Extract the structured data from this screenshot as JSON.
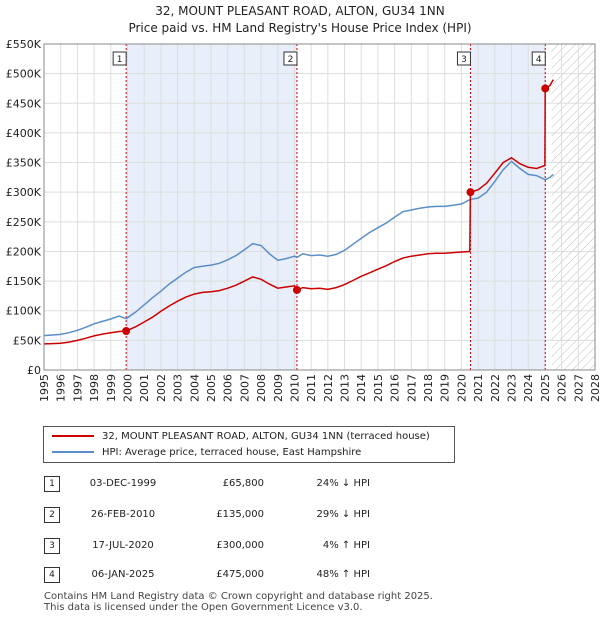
{
  "title": {
    "line1": "32, MOUNT PLEASANT ROAD, ALTON, GU34 1NN",
    "line2": "Price paid vs. HM Land Registry's House Price Index (HPI)"
  },
  "colors": {
    "property": "#cc0000",
    "hpi": "#5b8ec8",
    "band": "#e8eefa",
    "marker_line": "#cc0000"
  },
  "legend": {
    "property_label": "32, MOUNT PLEASANT ROAD, ALTON, GU34 1NN (terraced house)",
    "hpi_label": "HPI: Average price, terraced house, East Hampshire"
  },
  "transactions": [
    {
      "num": "1",
      "date": "03-DEC-1999",
      "price": "£65,800",
      "hpi": "24% ↓ HPI"
    },
    {
      "num": "2",
      "date": "26-FEB-2010",
      "price": "£135,000",
      "hpi": "29% ↓ HPI"
    },
    {
      "num": "3",
      "date": "17-JUL-2020",
      "price": "£300,000",
      "hpi": "4% ↑ HPI"
    },
    {
      "num": "4",
      "date": "06-JAN-2025",
      "price": "£475,000",
      "hpi": "48% ↑ HPI"
    }
  ],
  "footer": {
    "line1": "Contains HM Land Registry data © Crown copyright and database right 2025.",
    "line2": "This data is licensed under the Open Government Licence v3.0."
  },
  "chart_data": {
    "type": "line",
    "xlim": [
      1995,
      2028
    ],
    "ylim": [
      0,
      550000
    ],
    "x_ticks": [
      "1995",
      "1996",
      "1997",
      "1998",
      "1999",
      "2000",
      "2001",
      "2002",
      "2003",
      "2004",
      "2005",
      "2006",
      "2007",
      "2008",
      "2009",
      "2010",
      "2011",
      "2012",
      "2013",
      "2014",
      "2015",
      "2016",
      "2017",
      "2018",
      "2019",
      "2020",
      "2021",
      "2022",
      "2023",
      "2024",
      "2025",
      "2026",
      "2027",
      "2028"
    ],
    "y_ticks": [
      {
        "value": 0,
        "label": "£0"
      },
      {
        "value": 50000,
        "label": "£50K"
      },
      {
        "value": 100000,
        "label": "£100K"
      },
      {
        "value": 150000,
        "label": "£150K"
      },
      {
        "value": 200000,
        "label": "£200K"
      },
      {
        "value": 250000,
        "label": "£250K"
      },
      {
        "value": 300000,
        "label": "£300K"
      },
      {
        "value": 350000,
        "label": "£350K"
      },
      {
        "value": 400000,
        "label": "£400K"
      },
      {
        "value": 450000,
        "label": "£450K"
      },
      {
        "value": 500000,
        "label": "£500K"
      },
      {
        "value": 550000,
        "label": "£550K"
      }
    ],
    "grid": true,
    "shaded_bands": [
      [
        1999.92,
        2010.15
      ],
      [
        2020.54,
        2025.02
      ]
    ],
    "future_hatch_from": 2025.4,
    "sale_markers": [
      {
        "label": "1",
        "x": 1999.92,
        "y": 65800
      },
      {
        "label": "2",
        "x": 2010.15,
        "y": 135000
      },
      {
        "label": "3",
        "x": 2020.54,
        "y": 300000
      },
      {
        "label": "4",
        "x": 2025.02,
        "y": 475000
      }
    ],
    "series": [
      {
        "name": "HPI: Average price, terraced house, East Hampshire",
        "x": [
          1995.0,
          1995.5,
          1996.0,
          1996.5,
          1997.0,
          1997.5,
          1998.0,
          1998.5,
          1999.0,
          1999.5,
          1999.92,
          2000.5,
          2001.0,
          2001.5,
          2002.0,
          2002.5,
          2003.0,
          2003.5,
          2004.0,
          2004.5,
          2005.0,
          2005.5,
          2006.0,
          2006.5,
          2007.0,
          2007.5,
          2008.0,
          2008.5,
          2009.0,
          2009.5,
          2010.0,
          2010.15,
          2010.5,
          2011.0,
          2011.5,
          2012.0,
          2012.5,
          2013.0,
          2013.5,
          2014.0,
          2014.5,
          2015.0,
          2015.5,
          2016.0,
          2016.5,
          2017.0,
          2017.5,
          2018.0,
          2018.5,
          2019.0,
          2019.5,
          2020.0,
          2020.54,
          2021.0,
          2021.5,
          2022.0,
          2022.5,
          2023.0,
          2023.5,
          2024.0,
          2024.5,
          2025.02,
          2025.3,
          2025.5
        ],
        "values": [
          58000,
          59000,
          60000,
          63000,
          67000,
          72000,
          78000,
          82000,
          86000,
          91000,
          86500,
          98000,
          110000,
          122000,
          133000,
          145000,
          155000,
          165000,
          173000,
          175000,
          177000,
          180000,
          186000,
          193000,
          203000,
          213000,
          210000,
          196000,
          185000,
          188000,
          192000,
          190000,
          196000,
          193000,
          194000,
          192000,
          195000,
          202000,
          212000,
          222000,
          232000,
          240000,
          248000,
          258000,
          267000,
          270000,
          273000,
          275000,
          276000,
          276000,
          278000,
          280000,
          288000,
          290000,
          300000,
          318000,
          338000,
          352000,
          340000,
          330000,
          328000,
          321000,
          325000,
          330000
        ]
      },
      {
        "name": "32, MOUNT PLEASANT ROAD, ALTON, GU34 1NN (terraced house)",
        "x": [
          1995.0,
          1995.5,
          1996.0,
          1996.5,
          1997.0,
          1997.5,
          1998.0,
          1998.5,
          1999.0,
          1999.5,
          1999.92,
          2000.5,
          2001.0,
          2001.5,
          2002.0,
          2002.5,
          2003.0,
          2003.5,
          2004.0,
          2004.5,
          2005.0,
          2005.5,
          2006.0,
          2006.5,
          2007.0,
          2007.5,
          2008.0,
          2008.5,
          2009.0,
          2009.5,
          2010.0,
          2010.15,
          2010.5,
          2011.0,
          2011.5,
          2012.0,
          2012.5,
          2013.0,
          2013.5,
          2014.0,
          2014.5,
          2015.0,
          2015.5,
          2016.0,
          2016.5,
          2017.0,
          2017.5,
          2018.0,
          2018.5,
          2019.0,
          2019.5,
          2020.0,
          2020.5,
          2020.54,
          2021.0,
          2021.5,
          2022.0,
          2022.5,
          2023.0,
          2023.5,
          2024.0,
          2024.5,
          2025.0,
          2025.02,
          2025.3,
          2025.5
        ],
        "values": [
          44000,
          44500,
          45000,
          47000,
          50000,
          53500,
          57500,
          60500,
          63000,
          65000,
          65800,
          73000,
          81000,
          89000,
          99000,
          108000,
          116000,
          123000,
          128000,
          131000,
          132000,
          134000,
          138000,
          143000,
          150000,
          157000,
          153000,
          145000,
          138000,
          140000,
          142000,
          135000,
          139000,
          137000,
          138000,
          136000,
          139000,
          144000,
          151000,
          158000,
          164000,
          170000,
          176000,
          183000,
          189000,
          192000,
          194000,
          196000,
          197000,
          197000,
          198000,
          199000,
          200000,
          300000,
          304000,
          315000,
          332000,
          350000,
          358000,
          348000,
          342000,
          340000,
          345000,
          475000,
          480000,
          490000
        ]
      }
    ]
  }
}
